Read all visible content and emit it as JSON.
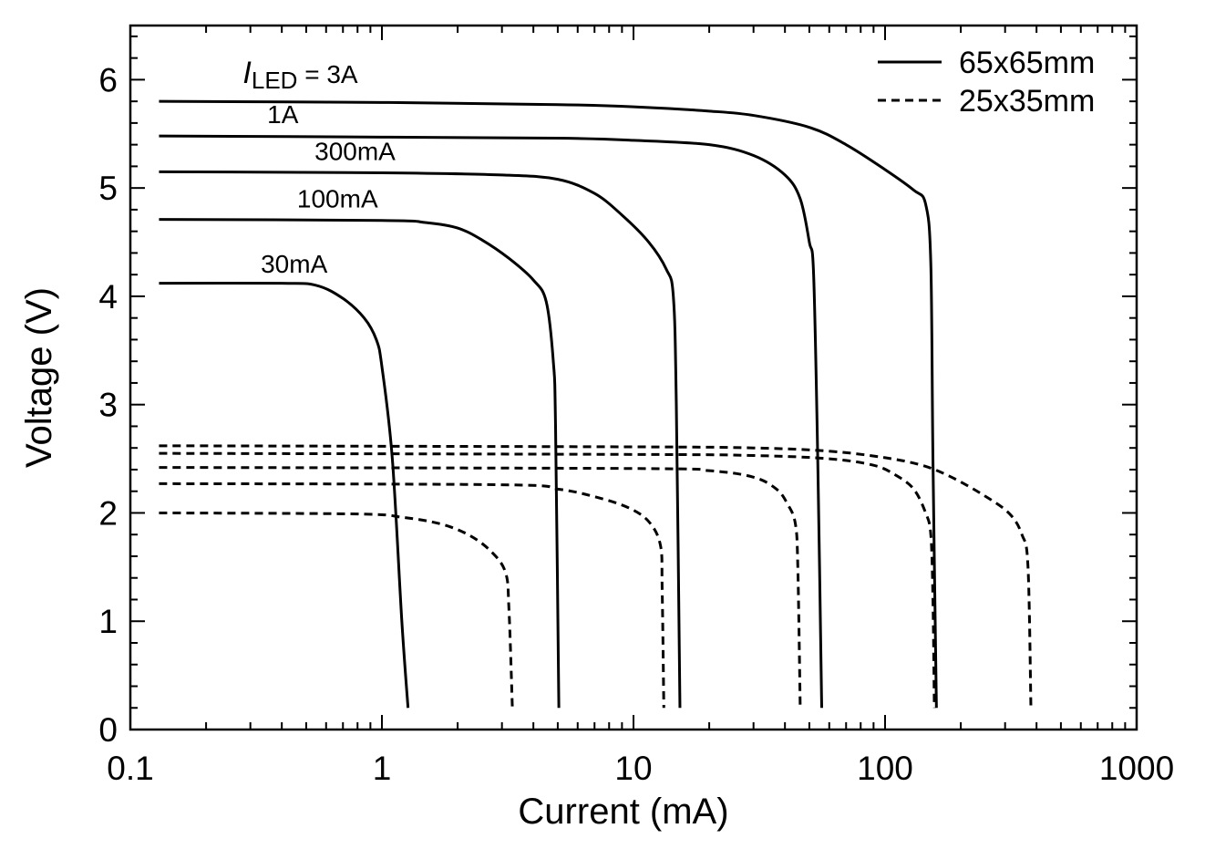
{
  "chart_data": {
    "type": "line",
    "xlabel": "Current (mA)",
    "ylabel": "Voltage (V)",
    "x_scale": "log",
    "xlim": [
      0.1,
      1000
    ],
    "ylim": [
      0,
      6.5
    ],
    "x_ticks": [
      {
        "value": 0.1,
        "label": "0.1"
      },
      {
        "value": 1,
        "label": "1"
      },
      {
        "value": 10,
        "label": "10"
      },
      {
        "value": 100,
        "label": "100"
      },
      {
        "value": 1000,
        "label": "1000"
      }
    ],
    "y_ticks": [
      {
        "value": 0,
        "label": "0"
      },
      {
        "value": 1,
        "label": "1"
      },
      {
        "value": 2,
        "label": "2"
      },
      {
        "value": 3,
        "label": "3"
      },
      {
        "value": 4,
        "label": "4"
      },
      {
        "value": 5,
        "label": "5"
      },
      {
        "value": 6,
        "label": "6"
      }
    ],
    "grid": false,
    "legend": {
      "placement": "top-right",
      "entries": [
        {
          "label": "65x65mm",
          "style": "solid"
        },
        {
          "label": "25x35mm",
          "style": "dashed"
        }
      ]
    },
    "curve_labels": [
      {
        "label_main": "I",
        "label_sub": "LED",
        "label_rest": " = 3A",
        "x": 0.28,
        "y": 5.97
      },
      {
        "label_main": "1A",
        "x": 0.35,
        "y": 5.6
      },
      {
        "label_main": "300mA",
        "x": 0.54,
        "y": 5.26
      },
      {
        "label_main": "100mA",
        "x": 0.46,
        "y": 4.82
      },
      {
        "label_main": "30mA",
        "x": 0.33,
        "y": 4.22
      }
    ],
    "series": [
      {
        "legend": "65x65mm",
        "led_current": "3A",
        "style": "solid",
        "points": [
          [
            0.13,
            5.8
          ],
          [
            1,
            5.79
          ],
          [
            5,
            5.77
          ],
          [
            10,
            5.75
          ],
          [
            20,
            5.71
          ],
          [
            30,
            5.67
          ],
          [
            50,
            5.56
          ],
          [
            70,
            5.4
          ],
          [
            100,
            5.17
          ],
          [
            130,
            4.98
          ],
          [
            145,
            4.85
          ],
          [
            152,
            4.3
          ],
          [
            155,
            2.5
          ],
          [
            160,
            0.2
          ]
        ]
      },
      {
        "legend": "65x65mm",
        "led_current": "1A",
        "style": "solid",
        "points": [
          [
            0.13,
            5.48
          ],
          [
            1,
            5.47
          ],
          [
            5,
            5.46
          ],
          [
            10,
            5.44
          ],
          [
            20,
            5.4
          ],
          [
            30,
            5.3
          ],
          [
            40,
            5.12
          ],
          [
            46,
            4.9
          ],
          [
            50,
            4.5
          ],
          [
            52,
            4.2
          ],
          [
            54,
            2.5
          ],
          [
            56,
            0.2
          ]
        ]
      },
      {
        "legend": "65x65mm",
        "led_current": "300mA",
        "style": "solid",
        "points": [
          [
            0.13,
            5.15
          ],
          [
            1,
            5.14
          ],
          [
            3,
            5.12
          ],
          [
            5,
            5.08
          ],
          [
            7,
            4.95
          ],
          [
            9,
            4.75
          ],
          [
            11.5,
            4.5
          ],
          [
            13.5,
            4.25
          ],
          [
            14.4,
            4.0
          ],
          [
            14.8,
            3.0
          ],
          [
            15.3,
            0.2
          ]
        ]
      },
      {
        "legend": "65x65mm",
        "led_current": "100mA",
        "style": "solid",
        "points": [
          [
            0.13,
            4.71
          ],
          [
            1,
            4.7
          ],
          [
            1.5,
            4.68
          ],
          [
            2,
            4.63
          ],
          [
            2.5,
            4.52
          ],
          [
            3.2,
            4.35
          ],
          [
            4,
            4.15
          ],
          [
            4.5,
            3.95
          ],
          [
            4.8,
            3.4
          ],
          [
            4.9,
            2.8
          ],
          [
            5.05,
            0.2
          ]
        ]
      },
      {
        "legend": "65x65mm",
        "led_current": "30mA",
        "style": "solid",
        "points": [
          [
            0.13,
            4.12
          ],
          [
            0.4,
            4.12
          ],
          [
            0.55,
            4.1
          ],
          [
            0.7,
            3.98
          ],
          [
            0.85,
            3.8
          ],
          [
            0.95,
            3.6
          ],
          [
            1,
            3.35
          ],
          [
            1.1,
            2.5
          ],
          [
            1.2,
            1.0
          ],
          [
            1.27,
            0.2
          ]
        ]
      },
      {
        "legend": "25x35mm",
        "led_current": "3A",
        "style": "dashed",
        "points": [
          [
            0.13,
            2.62
          ],
          [
            10,
            2.61
          ],
          [
            30,
            2.6
          ],
          [
            60,
            2.57
          ],
          [
            100,
            2.51
          ],
          [
            140,
            2.44
          ],
          [
            180,
            2.34
          ],
          [
            240,
            2.18
          ],
          [
            310,
            2.0
          ],
          [
            350,
            1.8
          ],
          [
            370,
            1.5
          ],
          [
            380,
            0.2
          ]
        ]
      },
      {
        "legend": "25x35mm",
        "led_current": "1A",
        "style": "dashed",
        "points": [
          [
            0.13,
            2.55
          ],
          [
            10,
            2.54
          ],
          [
            30,
            2.53
          ],
          [
            60,
            2.5
          ],
          [
            90,
            2.44
          ],
          [
            110,
            2.35
          ],
          [
            130,
            2.22
          ],
          [
            145,
            2.0
          ],
          [
            152,
            1.8
          ],
          [
            155,
            1.2
          ],
          [
            157,
            0.2
          ]
        ]
      },
      {
        "legend": "25x35mm",
        "led_current": "300mA",
        "style": "dashed",
        "points": [
          [
            0.13,
            2.42
          ],
          [
            10,
            2.41
          ],
          [
            20,
            2.39
          ],
          [
            30,
            2.33
          ],
          [
            37,
            2.22
          ],
          [
            41,
            2.08
          ],
          [
            44,
            1.9
          ],
          [
            45,
            1.5
          ],
          [
            46,
            0.2
          ]
        ]
      },
      {
        "legend": "25x35mm",
        "led_current": "100mA",
        "style": "dashed",
        "points": [
          [
            0.13,
            2.27
          ],
          [
            3,
            2.26
          ],
          [
            5,
            2.22
          ],
          [
            7,
            2.15
          ],
          [
            9.5,
            2.05
          ],
          [
            11.5,
            1.92
          ],
          [
            12.8,
            1.7
          ],
          [
            13,
            1.3
          ],
          [
            13.2,
            0.2
          ]
        ]
      },
      {
        "legend": "25x35mm",
        "led_current": "30mA",
        "style": "dashed",
        "points": [
          [
            0.13,
            2.0
          ],
          [
            0.8,
            1.99
          ],
          [
            1.2,
            1.96
          ],
          [
            1.7,
            1.9
          ],
          [
            2.2,
            1.8
          ],
          [
            2.7,
            1.65
          ],
          [
            3.1,
            1.45
          ],
          [
            3.2,
            1.1
          ],
          [
            3.3,
            0.2
          ]
        ]
      }
    ]
  }
}
